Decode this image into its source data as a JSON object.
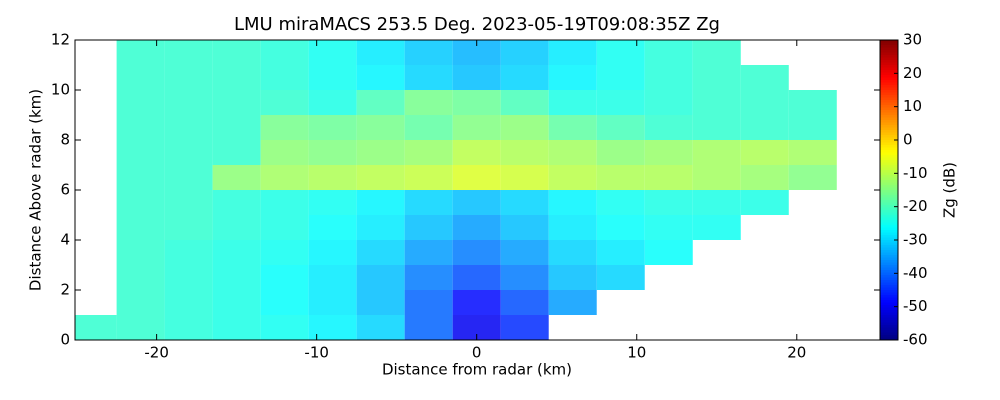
{
  "chart_data": {
    "type": "heatmap",
    "title": "LMU miraMACS 253.5 Deg. 2023-05-19T09:08:35Z  Zg",
    "x_label": "Distance from radar (km)",
    "y_label": "Distance Above radar  (km)",
    "colorbar_label": "Zg (dB)",
    "colormap": "jet",
    "x": [
      -24,
      -21,
      -18,
      -15,
      -12,
      -9,
      -6,
      -3,
      0,
      3,
      6,
      9,
      12,
      15,
      18,
      21,
      24
    ],
    "y": [
      0.5,
      1.5,
      2.5,
      3.5,
      4.5,
      5.5,
      6.5,
      7.5,
      8.5,
      9.5,
      10.5,
      11.5
    ],
    "z": [
      [
        -22,
        -22,
        -23,
        -24,
        -25,
        -27,
        -30,
        -40,
        -50,
        -45,
        null,
        null,
        null,
        null,
        null,
        null,
        null
      ],
      [
        null,
        -22,
        -23,
        -24,
        -26,
        -28,
        -32,
        -40,
        -48,
        -42,
        -35,
        null,
        null,
        null,
        null,
        null,
        null
      ],
      [
        null,
        -22,
        -23,
        -24,
        -26,
        -28,
        -32,
        -38,
        -42,
        -38,
        -32,
        -30,
        null,
        null,
        null,
        null,
        null
      ],
      [
        null,
        -22,
        -23,
        -24,
        -25,
        -27,
        -30,
        -35,
        -38,
        -35,
        -30,
        -28,
        -26,
        null,
        null,
        null,
        null
      ],
      [
        null,
        -22,
        -22,
        -23,
        -24,
        -26,
        -28,
        -32,
        -35,
        -32,
        -28,
        -26,
        -25,
        -25,
        null,
        null,
        null
      ],
      [
        null,
        -22,
        -22,
        -23,
        -24,
        -25,
        -27,
        -30,
        -32,
        -30,
        -27,
        -25,
        -24,
        -24,
        -24,
        null,
        null
      ],
      [
        null,
        -22,
        -22,
        -14,
        -12,
        -11,
        -10,
        -9,
        -7,
        -8,
        -10,
        -11,
        -11,
        -12,
        -13,
        -15,
        null
      ],
      [
        null,
        -22,
        -22,
        -22,
        -14,
        -15,
        -14,
        -13,
        -10,
        -11,
        -12,
        -14,
        -13,
        -12,
        -11,
        -12,
        null
      ],
      [
        null,
        -22,
        -22,
        -22,
        -16,
        -17,
        -16,
        -18,
        -15,
        -14,
        -18,
        -20,
        -22,
        -22,
        -22,
        -22,
        null
      ],
      [
        null,
        -22,
        -22,
        -22,
        -22,
        -24,
        -20,
        -16,
        -17,
        -20,
        -24,
        -24,
        -23,
        -22,
        -22,
        -22,
        null
      ],
      [
        null,
        -22,
        -22,
        -22,
        -23,
        -25,
        -27,
        -30,
        -32,
        -30,
        -27,
        -25,
        -23,
        -22,
        -22,
        null,
        null
      ],
      [
        null,
        -22,
        -22,
        -22,
        -23,
        -25,
        -28,
        -31,
        -33,
        -31,
        -28,
        -25,
        -23,
        -22,
        null,
        null,
        null
      ]
    ],
    "xlim": [
      -25.1,
      25.2
    ],
    "ylim": [
      0,
      12
    ],
    "xticks": [
      -20,
      -10,
      0,
      10,
      20
    ],
    "yticks": [
      0,
      2,
      4,
      6,
      8,
      10,
      12
    ],
    "zlim": [
      -60,
      30
    ],
    "zticks": [
      -60,
      -50,
      -40,
      -30,
      -20,
      -10,
      0,
      10,
      20,
      30
    ]
  }
}
